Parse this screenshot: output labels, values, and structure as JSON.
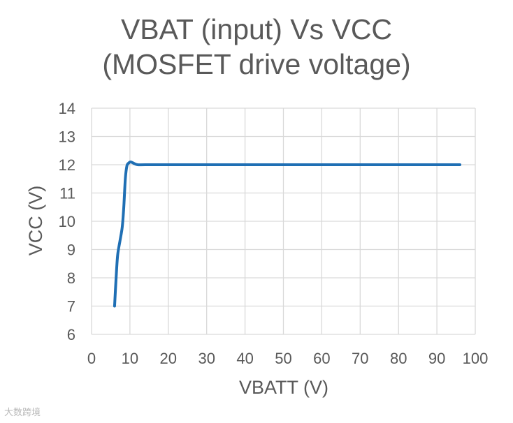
{
  "chart_data": {
    "type": "line",
    "title_lines": [
      "VBAT (input) Vs VCC",
      "(MOSFET drive voltage)"
    ],
    "xlabel": "VBATT (V)",
    "ylabel": "VCC (V)",
    "xlim": [
      0,
      100
    ],
    "ylim": [
      6,
      14
    ],
    "xticks": [
      0,
      10,
      20,
      30,
      40,
      50,
      60,
      70,
      80,
      90,
      100
    ],
    "yticks": [
      6,
      7,
      8,
      9,
      10,
      11,
      12,
      13,
      14
    ],
    "grid": true,
    "series": [
      {
        "color": "#1f6fb4",
        "x": [
          6,
          6.4,
          6.8,
          7.4,
          8.0,
          8.4,
          8.8,
          9.2,
          9.6,
          10.2,
          11,
          12,
          14,
          20,
          40,
          60,
          80,
          96
        ],
        "y": [
          7.0,
          8.0,
          8.8,
          9.3,
          9.8,
          10.5,
          11.5,
          11.95,
          12.05,
          12.1,
          12.05,
          12.0,
          12.0,
          12.0,
          12.0,
          12.0,
          12.0,
          12.0
        ]
      }
    ]
  },
  "watermark": "大数跨境"
}
